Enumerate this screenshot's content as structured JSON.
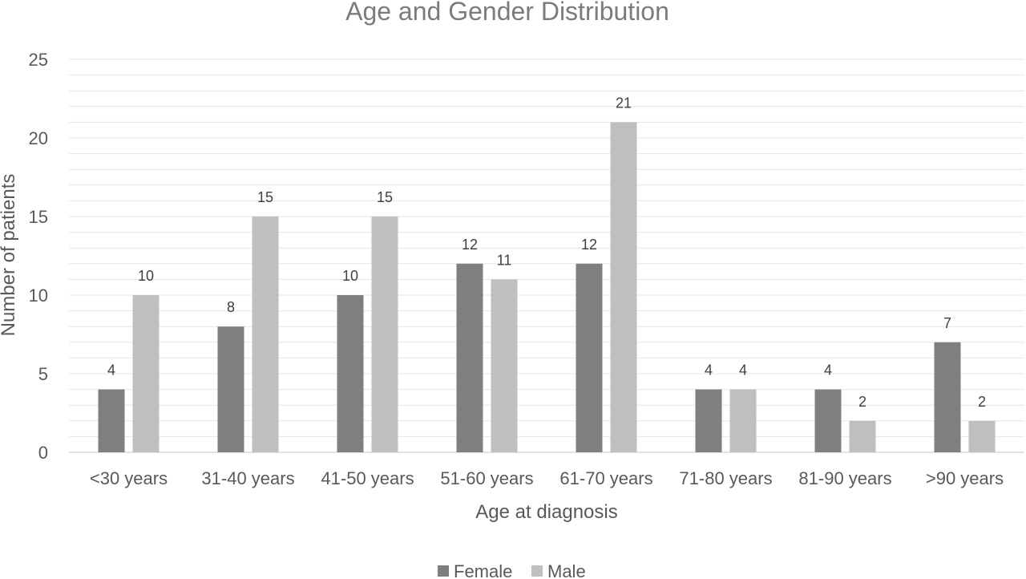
{
  "chart_data": {
    "type": "bar",
    "title": "Age and Gender Distribution",
    "xlabel": "Age at diagnosis",
    "ylabel": "Number of patients",
    "categories": [
      "<30 years",
      "31-40 years",
      "41-50 years",
      "51-60 years",
      "61-70 years",
      "71-80 years",
      "81-90 years",
      ">90 years"
    ],
    "series": [
      {
        "name": "Female",
        "color": "#7f7f7f",
        "values": [
          4,
          8,
          10,
          12,
          12,
          4,
          4,
          7
        ]
      },
      {
        "name": "Male",
        "color": "#bfbfbf",
        "values": [
          10,
          15,
          15,
          11,
          21,
          4,
          2,
          2
        ]
      }
    ],
    "ylim": [
      0,
      25
    ],
    "yticks": [
      0,
      5,
      10,
      15,
      20,
      25
    ],
    "minor_gridline_step": 1,
    "grid": true,
    "legend_position": "bottom",
    "colors": {
      "gridline": "#e6e6e6",
      "axis": "#d9d9d9"
    }
  }
}
